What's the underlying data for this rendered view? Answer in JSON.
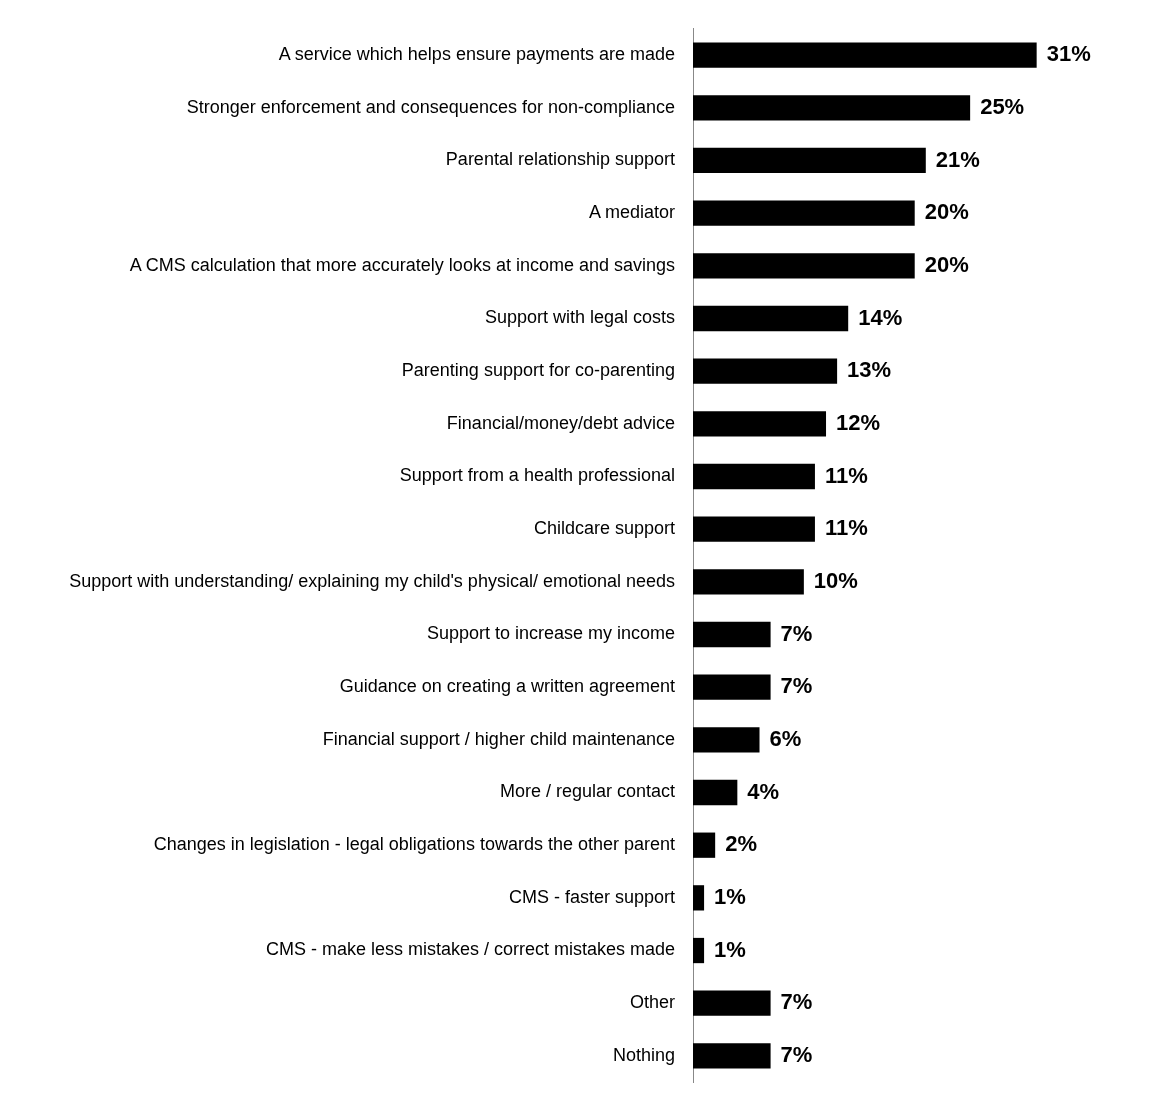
{
  "chart_data": {
    "type": "bar",
    "orientation": "horizontal",
    "color": "#000000",
    "categories": [
      "A service which helps ensure payments are made",
      "Stronger enforcement and consequences for non-compliance",
      "Parental relationship support",
      "A mediator",
      "A CMS calculation that more accurately looks at income and savings",
      "Support with legal costs",
      "Parenting support for co-parenting",
      "Financial/money/debt advice",
      "Support from a health professional",
      "Childcare support",
      "Support with understanding/ explaining my child's physical/ emotional needs",
      "Support to increase my income",
      "Guidance on creating a written agreement",
      "Financial support / higher child maintenance",
      "More / regular contact",
      "Changes in legislation - legal obligations towards the other parent",
      "CMS - faster support",
      "CMS - make less mistakes / correct mistakes made",
      "Other",
      "Nothing"
    ],
    "values": [
      31,
      25,
      21,
      20,
      20,
      14,
      13,
      12,
      11,
      11,
      10,
      7,
      7,
      6,
      4,
      2,
      1,
      1,
      7,
      7
    ],
    "value_labels": [
      "31%",
      "25%",
      "21%",
      "20%",
      "20%",
      "14%",
      "13%",
      "12%",
      "11%",
      "11%",
      "10%",
      "7%",
      "7%",
      "6%",
      "4%",
      "2%",
      "1%",
      "1%",
      "7%",
      "7%"
    ]
  }
}
